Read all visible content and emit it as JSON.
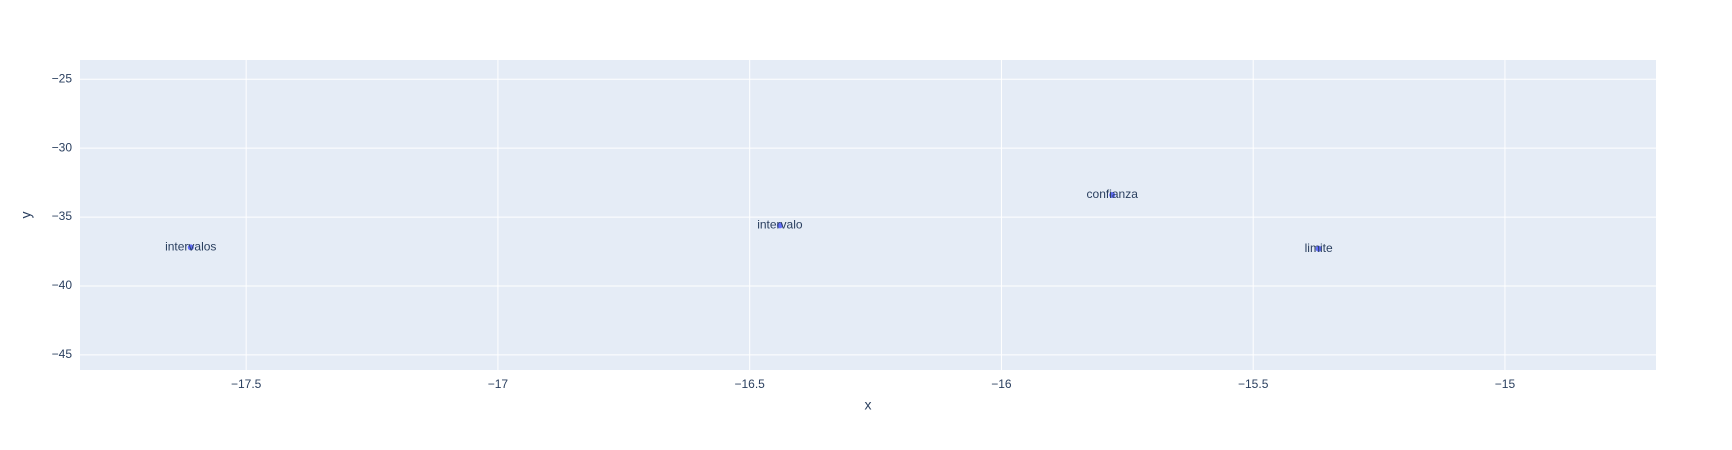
{
  "chart_data": {
    "type": "scatter",
    "title": "",
    "xlabel": "x",
    "ylabel": "y",
    "xlim": [
      -17.83,
      -14.7
    ],
    "ylim": [
      -46.1,
      -23.6
    ],
    "x_ticks": [
      -17.5,
      -17,
      -16.5,
      -16,
      -15.5,
      -15
    ],
    "x_tick_labels": [
      "−17.5",
      "−17",
      "−16.5",
      "−16",
      "−15.5",
      "−15"
    ],
    "y_ticks": [
      -25,
      -30,
      -35,
      -40,
      -45
    ],
    "y_tick_labels": [
      "−25",
      "−30",
      "−35",
      "−40",
      "−45"
    ],
    "grid": true,
    "points": [
      {
        "x": -17.61,
        "y": -37.2,
        "label": "intervalos"
      },
      {
        "x": -16.44,
        "y": -35.6,
        "label": "intervalo"
      },
      {
        "x": -15.78,
        "y": -33.4,
        "label": "confianza"
      },
      {
        "x": -15.37,
        "y": -37.3,
        "label": "limite"
      }
    ],
    "colors": {
      "plot_background": "#e5ecf6",
      "grid": "#ffffff",
      "marker": "#636efa",
      "text": "#2a3f5f"
    }
  }
}
